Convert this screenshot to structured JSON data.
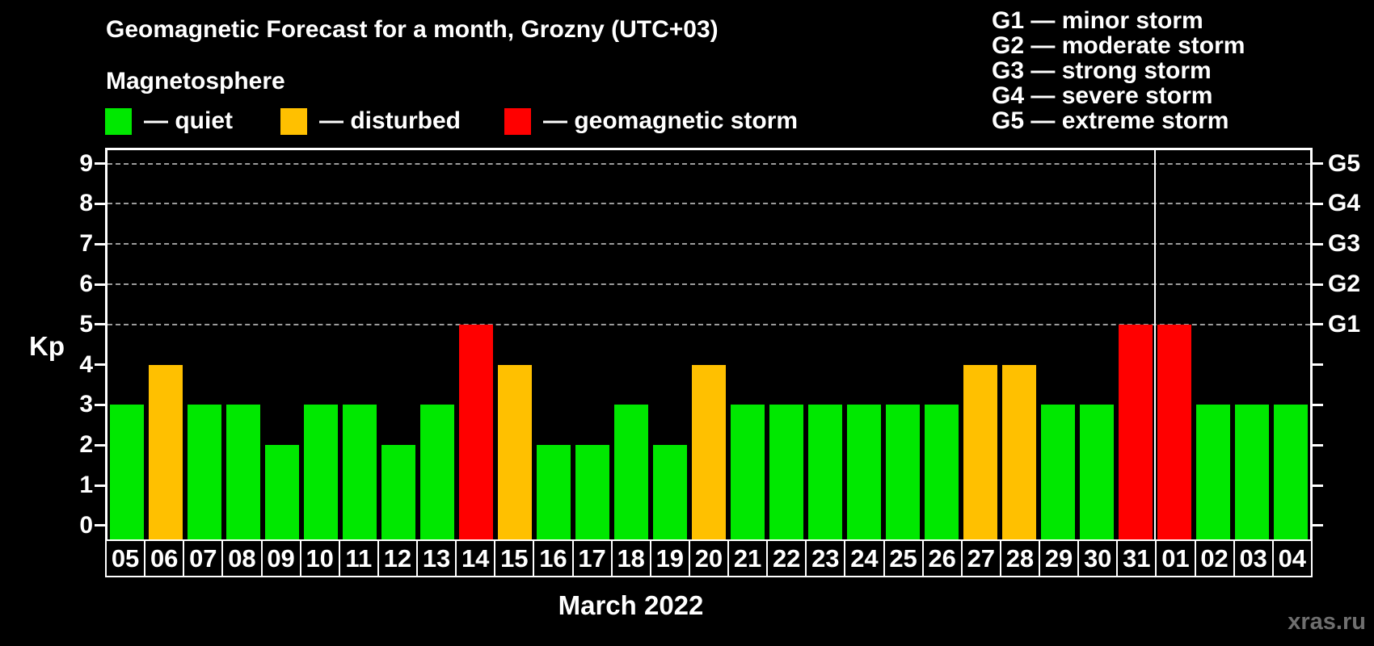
{
  "title": "Geomagnetic Forecast for a month, Grozny (UTC+03)",
  "subtitle": "Magnetosphere",
  "legend": {
    "items": [
      {
        "key": "quiet",
        "label": "— quiet",
        "color": "#00e800",
        "x": 130
      },
      {
        "key": "disturbed",
        "label": "— disturbed",
        "color": "#ffc000",
        "x": 347
      },
      {
        "key": "storm",
        "label": "— geomagnetic storm",
        "color": "#ff0000",
        "x": 624
      }
    ]
  },
  "storm_scale_legend": [
    "G1 — minor storm",
    "G2 — moderate storm",
    "G3 — strong storm",
    "G4 — severe storm",
    "G5 — extreme storm"
  ],
  "watermark": "xras.ru",
  "chart_data": {
    "type": "bar",
    "title": "Geomagnetic Forecast for a month, Grozny (UTC+03)",
    "xlabel": "March 2022",
    "ylabel": "Kp",
    "ylim": [
      -0.35,
      9.4
    ],
    "yticks": [
      0,
      1,
      2,
      3,
      4,
      5,
      6,
      7,
      8,
      9
    ],
    "gridlines_at": [
      5,
      6,
      7,
      8,
      9
    ],
    "grid": "dashed",
    "legend_position": "top-left",
    "right_axis": [
      {
        "level": 5,
        "label": "G1"
      },
      {
        "level": 6,
        "label": "G2"
      },
      {
        "level": 7,
        "label": "G3"
      },
      {
        "level": 8,
        "label": "G4"
      },
      {
        "level": 9,
        "label": "G5"
      }
    ],
    "categories": [
      "05",
      "06",
      "07",
      "08",
      "09",
      "10",
      "11",
      "12",
      "13",
      "14",
      "15",
      "16",
      "17",
      "18",
      "19",
      "20",
      "21",
      "22",
      "23",
      "24",
      "25",
      "26",
      "27",
      "28",
      "29",
      "30",
      "31",
      "01",
      "02",
      "03",
      "04"
    ],
    "values": [
      3,
      4,
      3,
      3,
      2,
      3,
      3,
      2,
      3,
      5,
      4,
      2,
      2,
      3,
      2,
      4,
      3,
      3,
      3,
      3,
      3,
      3,
      4,
      4,
      3,
      3,
      5,
      5,
      3,
      3,
      3
    ],
    "statuses": [
      "quiet",
      "disturbed",
      "quiet",
      "quiet",
      "quiet",
      "quiet",
      "quiet",
      "quiet",
      "quiet",
      "storm",
      "disturbed",
      "quiet",
      "quiet",
      "quiet",
      "quiet",
      "disturbed",
      "quiet",
      "quiet",
      "quiet",
      "quiet",
      "quiet",
      "quiet",
      "disturbed",
      "disturbed",
      "quiet",
      "quiet",
      "storm",
      "storm",
      "quiet",
      "quiet",
      "quiet"
    ],
    "colors": {
      "quiet": "#00e800",
      "disturbed": "#ffc000",
      "storm": "#ff0000"
    },
    "month_separator_index": 27
  }
}
